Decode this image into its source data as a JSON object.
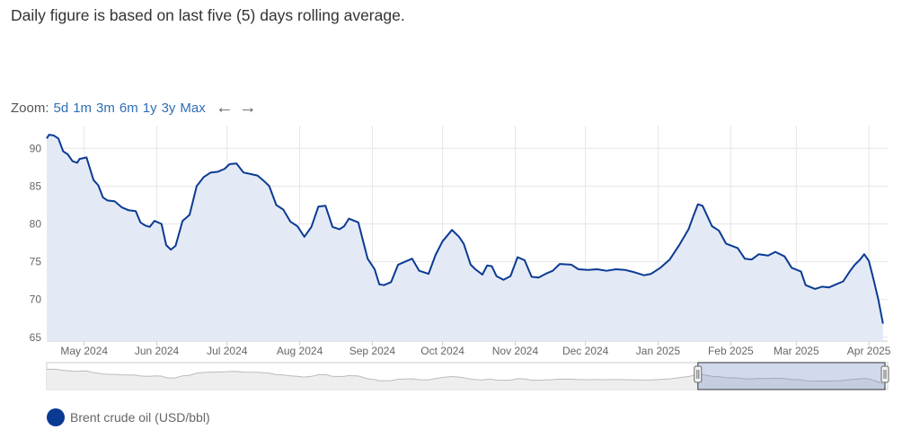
{
  "note": "Daily figure is based on last five (5) days rolling average.",
  "zoom": {
    "label": "Zoom:",
    "options": [
      "5d",
      "1m",
      "3m",
      "6m",
      "1y",
      "3y",
      "Max"
    ],
    "prev_icon": "arrow-left-icon",
    "next_icon": "arrow-right-icon"
  },
  "chart_data": {
    "type": "area",
    "title": "",
    "xlabel": "",
    "ylabel": "",
    "ylim": [
      64.5,
      93
    ],
    "yticks": [
      65,
      70,
      75,
      80,
      85,
      90
    ],
    "xlim": [
      "2024-04-15",
      "2025-04-09"
    ],
    "xticks": [
      {
        "date": "2024-05-01",
        "label": "May 2024"
      },
      {
        "date": "2024-06-01",
        "label": "Jun 2024"
      },
      {
        "date": "2024-07-01",
        "label": "Jul 2024"
      },
      {
        "date": "2024-08-01",
        "label": "Aug 2024"
      },
      {
        "date": "2024-09-01",
        "label": "Sep 2024"
      },
      {
        "date": "2024-10-01",
        "label": "Oct 2024"
      },
      {
        "date": "2024-11-01",
        "label": "Nov 2024"
      },
      {
        "date": "2024-12-01",
        "label": "Dec 2024"
      },
      {
        "date": "2025-01-01",
        "label": "Jan 2025"
      },
      {
        "date": "2025-02-01",
        "label": "Feb 2025"
      },
      {
        "date": "2025-03-01",
        "label": "Mar 2025"
      },
      {
        "date": "2025-04-01",
        "label": "Apr 2025"
      }
    ],
    "grid": true,
    "legend_position": "bottom-left",
    "series": [
      {
        "name": "Brent crude oil (USD/bbl)",
        "color": "#0b3a93",
        "fill": "#e3eaf5",
        "points": [
          [
            "2024-04-15",
            91.3
          ],
          [
            "2024-04-16",
            91.8
          ],
          [
            "2024-04-18",
            91.7
          ],
          [
            "2024-04-20",
            91.3
          ],
          [
            "2024-04-22",
            89.6
          ],
          [
            "2024-04-24",
            89.2
          ],
          [
            "2024-04-26",
            88.3
          ],
          [
            "2024-04-28",
            88.1
          ],
          [
            "2024-04-29",
            88.6
          ],
          [
            "2024-05-02",
            88.8
          ],
          [
            "2024-05-05",
            85.8
          ],
          [
            "2024-05-07",
            85.1
          ],
          [
            "2024-05-09",
            83.5
          ],
          [
            "2024-05-11",
            83.1
          ],
          [
            "2024-05-14",
            83.0
          ],
          [
            "2024-05-17",
            82.2
          ],
          [
            "2024-05-20",
            81.8
          ],
          [
            "2024-05-23",
            81.7
          ],
          [
            "2024-05-25",
            80.2
          ],
          [
            "2024-05-27",
            79.8
          ],
          [
            "2024-05-29",
            79.6
          ],
          [
            "2024-05-31",
            80.4
          ],
          [
            "2024-06-03",
            80.0
          ],
          [
            "2024-06-05",
            77.2
          ],
          [
            "2024-06-07",
            76.6
          ],
          [
            "2024-06-09",
            77.1
          ],
          [
            "2024-06-12",
            80.4
          ],
          [
            "2024-06-15",
            81.2
          ],
          [
            "2024-06-18",
            85.0
          ],
          [
            "2024-06-21",
            86.2
          ],
          [
            "2024-06-24",
            86.8
          ],
          [
            "2024-06-27",
            86.9
          ],
          [
            "2024-06-30",
            87.3
          ],
          [
            "2024-07-02",
            87.9
          ],
          [
            "2024-07-05",
            88.0
          ],
          [
            "2024-07-08",
            86.8
          ],
          [
            "2024-07-11",
            86.6
          ],
          [
            "2024-07-14",
            86.4
          ],
          [
            "2024-07-17",
            85.6
          ],
          [
            "2024-07-19",
            85.0
          ],
          [
            "2024-07-22",
            82.5
          ],
          [
            "2024-07-25",
            81.9
          ],
          [
            "2024-07-28",
            80.3
          ],
          [
            "2024-07-31",
            79.7
          ],
          [
            "2024-08-03",
            78.3
          ],
          [
            "2024-08-06",
            79.6
          ],
          [
            "2024-08-09",
            82.3
          ],
          [
            "2024-08-12",
            82.4
          ],
          [
            "2024-08-15",
            79.6
          ],
          [
            "2024-08-18",
            79.3
          ],
          [
            "2024-08-20",
            79.7
          ],
          [
            "2024-08-22",
            80.7
          ],
          [
            "2024-08-26",
            80.2
          ],
          [
            "2024-08-30",
            75.4
          ],
          [
            "2024-09-02",
            74.0
          ],
          [
            "2024-09-04",
            72.0
          ],
          [
            "2024-09-06",
            71.9
          ],
          [
            "2024-09-09",
            72.3
          ],
          [
            "2024-09-12",
            74.6
          ],
          [
            "2024-09-15",
            75.0
          ],
          [
            "2024-09-18",
            75.4
          ],
          [
            "2024-09-21",
            73.8
          ],
          [
            "2024-09-25",
            73.4
          ],
          [
            "2024-09-28",
            75.9
          ],
          [
            "2024-10-01",
            77.7
          ],
          [
            "2024-10-05",
            79.2
          ],
          [
            "2024-10-08",
            78.3
          ],
          [
            "2024-10-10",
            77.4
          ],
          [
            "2024-10-13",
            74.6
          ],
          [
            "2024-10-15",
            74.0
          ],
          [
            "2024-10-18",
            73.3
          ],
          [
            "2024-10-20",
            74.5
          ],
          [
            "2024-10-22",
            74.4
          ],
          [
            "2024-10-24",
            73.1
          ],
          [
            "2024-10-27",
            72.6
          ],
          [
            "2024-10-30",
            73.1
          ],
          [
            "2024-11-02",
            75.6
          ],
          [
            "2024-11-05",
            75.2
          ],
          [
            "2024-11-08",
            73.0
          ],
          [
            "2024-11-11",
            72.9
          ],
          [
            "2024-11-14",
            73.4
          ],
          [
            "2024-11-17",
            73.8
          ],
          [
            "2024-11-20",
            74.7
          ],
          [
            "2024-11-25",
            74.6
          ],
          [
            "2024-11-28",
            74.0
          ],
          [
            "2024-12-02",
            73.9
          ],
          [
            "2024-12-06",
            74.0
          ],
          [
            "2024-12-10",
            73.8
          ],
          [
            "2024-12-14",
            74.0
          ],
          [
            "2024-12-18",
            73.9
          ],
          [
            "2024-12-22",
            73.6
          ],
          [
            "2024-12-26",
            73.2
          ],
          [
            "2024-12-29",
            73.4
          ],
          [
            "2025-01-02",
            74.2
          ],
          [
            "2025-01-06",
            75.3
          ],
          [
            "2025-01-10",
            77.2
          ],
          [
            "2025-01-14",
            79.3
          ],
          [
            "2025-01-16",
            81.0
          ],
          [
            "2025-01-18",
            82.6
          ],
          [
            "2025-01-20",
            82.4
          ],
          [
            "2025-01-24",
            79.7
          ],
          [
            "2025-01-27",
            79.1
          ],
          [
            "2025-01-30",
            77.4
          ],
          [
            "2025-02-04",
            76.8
          ],
          [
            "2025-02-07",
            75.4
          ],
          [
            "2025-02-10",
            75.3
          ],
          [
            "2025-02-13",
            76.0
          ],
          [
            "2025-02-17",
            75.8
          ],
          [
            "2025-02-20",
            76.3
          ],
          [
            "2025-02-24",
            75.7
          ],
          [
            "2025-02-27",
            74.2
          ],
          [
            "2025-03-03",
            73.7
          ],
          [
            "2025-03-05",
            71.9
          ],
          [
            "2025-03-09",
            71.4
          ],
          [
            "2025-03-12",
            71.7
          ],
          [
            "2025-03-15",
            71.6
          ],
          [
            "2025-03-18",
            72.0
          ],
          [
            "2025-03-21",
            72.4
          ],
          [
            "2025-03-24",
            73.8
          ],
          [
            "2025-03-26",
            74.6
          ],
          [
            "2025-03-28",
            75.2
          ],
          [
            "2025-03-30",
            76.0
          ],
          [
            "2025-04-01",
            75.1
          ],
          [
            "2025-04-03",
            72.6
          ],
          [
            "2025-04-05",
            70.0
          ],
          [
            "2025-04-07",
            66.8
          ]
        ]
      }
    ],
    "navigator": {
      "range": [
        "2025-01-18",
        "2025-04-09"
      ]
    }
  }
}
